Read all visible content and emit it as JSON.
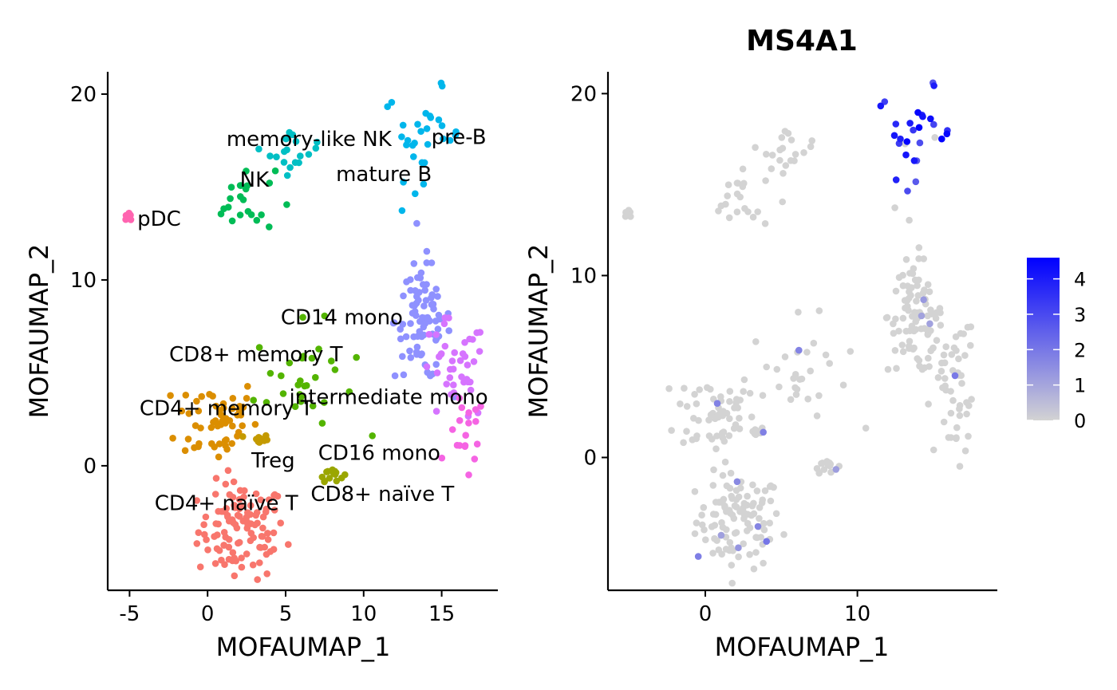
{
  "chart_data": [
    {
      "type": "scatter",
      "title": "",
      "xlabel": "MOFAUMAP_1",
      "ylabel": "MOFAUMAP_2",
      "xlim": [
        -6.4,
        18.6
      ],
      "ylim": [
        -6.7,
        21.2
      ],
      "xticks": [
        -5,
        0,
        5,
        10,
        15
      ],
      "yticks": [
        0,
        10,
        20
      ],
      "legend": "none",
      "labels": [
        {
          "text": "memory-like NK",
          "x": 6.5,
          "y": 17.6
        },
        {
          "text": "pre-B",
          "x": 16.1,
          "y": 17.7
        },
        {
          "text": "mature B",
          "x": 11.3,
          "y": 15.7
        },
        {
          "text": "NK",
          "x": 3.0,
          "y": 15.4
        },
        {
          "text": "pDC",
          "x": -3.1,
          "y": 13.3
        },
        {
          "text": "CD14 mono",
          "x": 8.6,
          "y": 8.0
        },
        {
          "text": "CD8+ memory T",
          "x": 3.1,
          "y": 6.0
        },
        {
          "text": "intermediate mono",
          "x": 11.6,
          "y": 3.7
        },
        {
          "text": "CD4+ memory T",
          "x": 1.2,
          "y": 3.1
        },
        {
          "text": "CD16 mono",
          "x": 11.0,
          "y": 0.7
        },
        {
          "text": "Treg",
          "x": 4.2,
          "y": 0.3
        },
        {
          "text": "CD8+ naïve T",
          "x": 11.2,
          "y": -1.5
        },
        {
          "text": "CD4+ naïve T",
          "x": 1.2,
          "y": -2.0
        }
      ],
      "clusters": [
        {
          "name": "CD4+ naïve T",
          "color": "#F8766D",
          "cx": 2.2,
          "cy": -3.5,
          "sx": 1.4,
          "sy": 1.3,
          "n": 110
        },
        {
          "name": "CD4+ memory T",
          "color": "#DB8E00",
          "cx": 0.6,
          "cy": 2.5,
          "sx": 1.3,
          "sy": 1.2,
          "n": 55
        },
        {
          "name": "Treg",
          "color": "#C49A00",
          "cx": 3.3,
          "cy": 1.4,
          "sx": 0.3,
          "sy": 0.15,
          "n": 12
        },
        {
          "name": "CD8+ naïve T",
          "color": "#9AA600",
          "cx": 7.9,
          "cy": -0.4,
          "sx": 0.4,
          "sy": 0.2,
          "n": 14
        },
        {
          "name": "CD8+ memory T",
          "color": "#53B400",
          "cx": 6.2,
          "cy": 4.6,
          "sx": 1.6,
          "sy": 1.5,
          "n": 30
        },
        {
          "name": "NK",
          "color": "#00BC56",
          "cx": 2.3,
          "cy": 14.3,
          "sx": 1.0,
          "sy": 0.9,
          "n": 22
        },
        {
          "name": "memory-like NK",
          "color": "#00BFC4",
          "cx": 5.6,
          "cy": 16.9,
          "sx": 0.8,
          "sy": 0.6,
          "n": 18
        },
        {
          "name": "pre-B",
          "color": "#00B6EB",
          "cx": 13.8,
          "cy": 17.8,
          "sx": 1.3,
          "sy": 1.2,
          "n": 30
        },
        {
          "name": "CD14 mono",
          "color": "#8F91FF",
          "cx": 13.8,
          "cy": 7.8,
          "sx": 0.9,
          "sy": 1.6,
          "n": 85
        },
        {
          "name": "intermediate mono",
          "color": "#D674FF",
          "cx": 15.7,
          "cy": 5.0,
          "sx": 1.1,
          "sy": 1.4,
          "n": 40
        },
        {
          "name": "CD16 mono",
          "color": "#F564E3",
          "cx": 16.6,
          "cy": 1.5,
          "sx": 0.6,
          "sy": 1.2,
          "n": 18
        },
        {
          "name": "pDC",
          "color": "#FF64B0",
          "cx": -5.1,
          "cy": 13.35,
          "sx": 0.2,
          "sy": 0.1,
          "n": 8
        }
      ]
    },
    {
      "type": "scatter",
      "title": "MS4A1",
      "xlabel": "MOFAUMAP_1",
      "ylabel": "MOFAUMAP_2",
      "xlim": [
        -6.4,
        19.2
      ],
      "ylim": [
        -7.3,
        21.2
      ],
      "xticks": [
        0,
        10
      ],
      "yticks": [
        0,
        10,
        20
      ],
      "color_scale": {
        "low": "#D3D3D3",
        "high": "#0000FF",
        "min": 0,
        "max": 4.6,
        "ticks": [
          0,
          1,
          2,
          3,
          4
        ]
      },
      "legend": "right"
    }
  ]
}
